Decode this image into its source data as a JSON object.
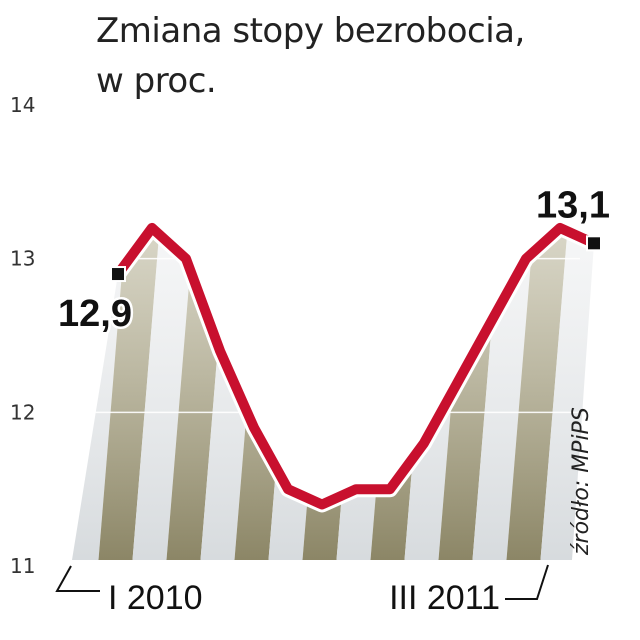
{
  "title_line1": "Zmiana stopy bezrobocia,",
  "title_line2": "w proc.",
  "chart_data": {
    "type": "area",
    "title": "Zmiana stopy bezrobocia, w proc.",
    "x_tick_labels": [
      "I 2010",
      "III 2011"
    ],
    "ylim": [
      11,
      14
    ],
    "y_ticks": [
      11,
      12,
      13,
      14
    ],
    "y_tick_labels": [
      "11",
      "12",
      "13",
      "14"
    ],
    "grid": true,
    "x_count": 15,
    "values": [
      12.9,
      13.2,
      13.0,
      12.4,
      11.9,
      11.5,
      11.4,
      11.5,
      11.5,
      11.8,
      12.2,
      12.6,
      13.0,
      13.2,
      13.1
    ],
    "annotations": [
      {
        "index": 0,
        "text": "12,9",
        "position": "below"
      },
      {
        "index": 14,
        "text": "13,1",
        "position": "above"
      }
    ],
    "source": "źródło: MPiPS"
  },
  "colors": {
    "line": "#c8102e",
    "stripe_dark": "#8f8a6a",
    "stripe_light": "#dfe3e6",
    "tick_text": "#333333"
  }
}
